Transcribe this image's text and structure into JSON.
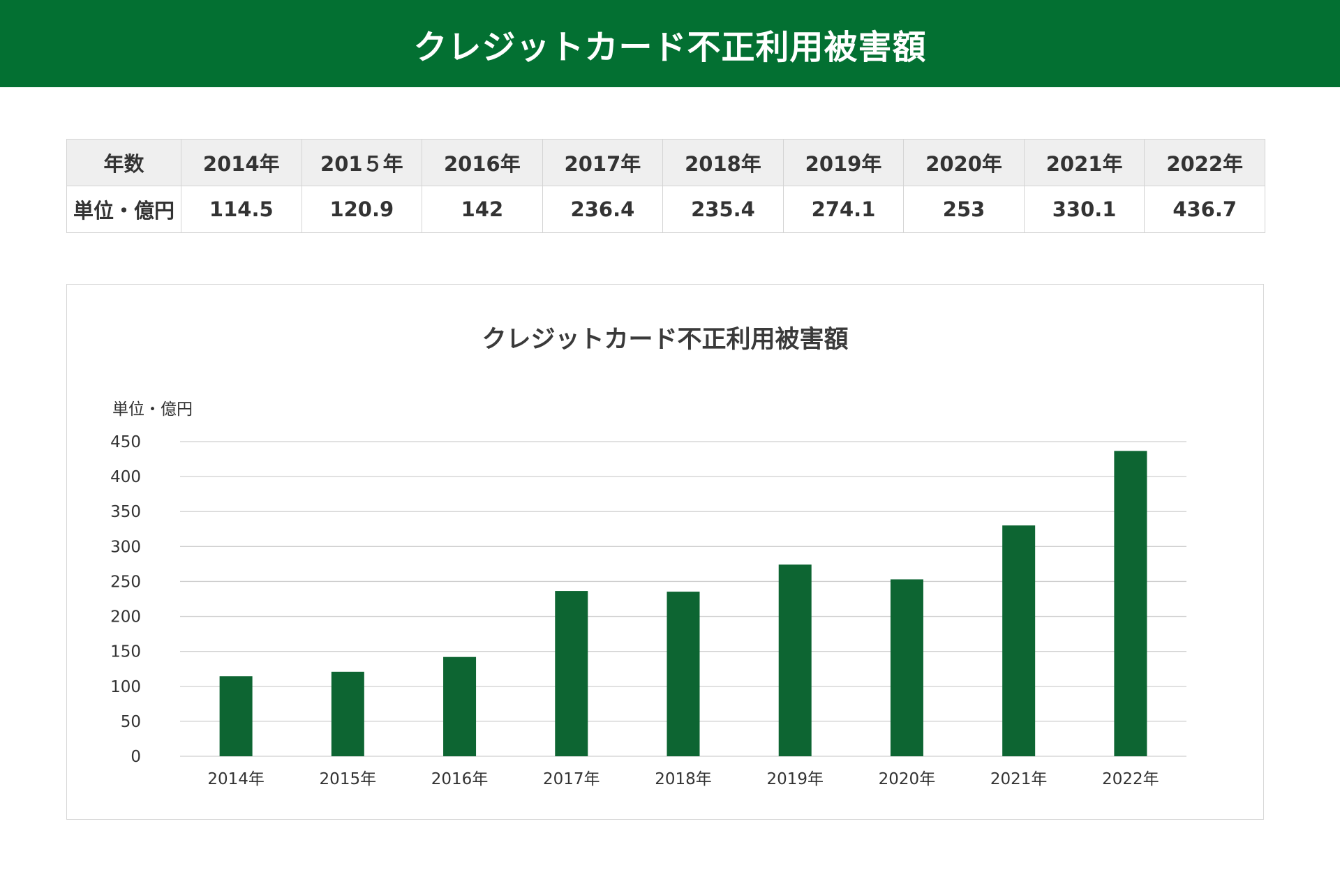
{
  "header": {
    "title": "クレジットカード不正利用被害額"
  },
  "table": {
    "row_header_label": "年数",
    "row_value_label": "単位・億円",
    "years": [
      "2014年",
      "201５年",
      "2016年",
      "2017年",
      "2018年",
      "2019年",
      "2020年",
      "2021年",
      "2022年"
    ],
    "values": [
      "114.5",
      "120.9",
      "142",
      "236.4",
      "235.4",
      "274.1",
      "253",
      "330.1",
      "436.7"
    ]
  },
  "colors": {
    "header_bg": "#037032",
    "bar": "#0d6532",
    "grid": "#cfcfcf"
  },
  "chart_data": {
    "type": "bar",
    "title": "クレジットカード不正利用被害額",
    "ylabel": "単位・億円",
    "xlabel": "",
    "categories": [
      "2014年",
      "2015年",
      "2016年",
      "2017年",
      "2018年",
      "2019年",
      "2020年",
      "2021年",
      "2022年"
    ],
    "values": [
      114.5,
      120.9,
      142,
      236.4,
      235.4,
      274.1,
      253,
      330.1,
      436.7
    ],
    "ylim": [
      0,
      450
    ],
    "yticks": [
      0,
      50,
      100,
      150,
      200,
      250,
      300,
      350,
      400,
      450
    ],
    "grid": true,
    "legend": "none"
  }
}
